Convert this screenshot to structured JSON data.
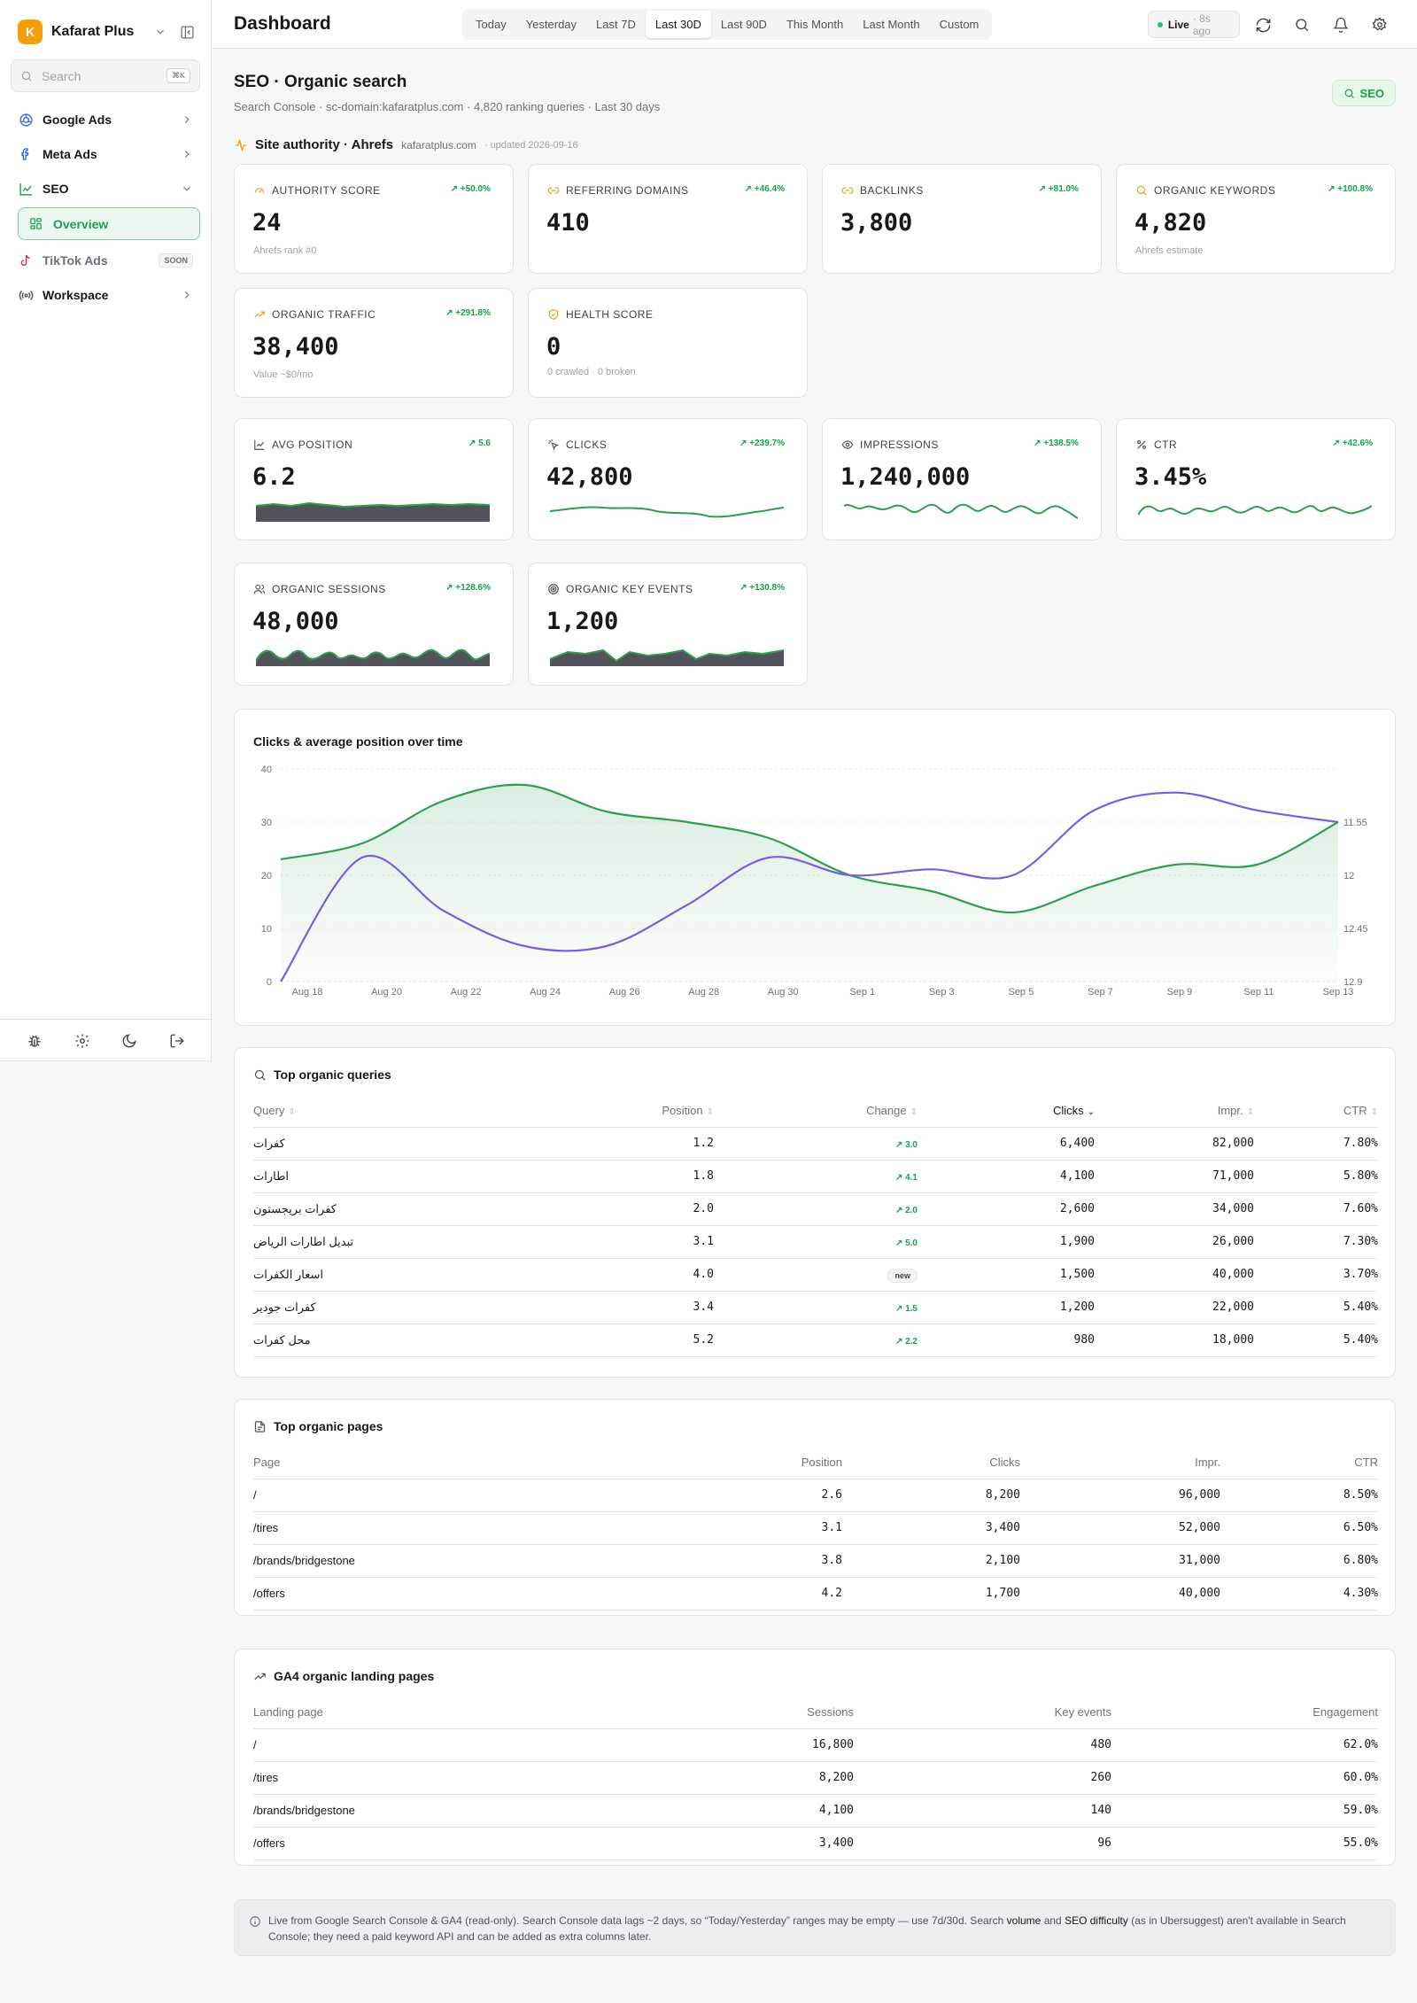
{
  "brand": {
    "initial": "K",
    "name": "Kafarat Plus"
  },
  "search": {
    "placeholder": "Search",
    "shortcut": "⌘K"
  },
  "sidebar": {
    "items": [
      {
        "label": "Google Ads"
      },
      {
        "label": "Meta Ads"
      },
      {
        "label": "SEO"
      },
      {
        "label": "TikTok Ads",
        "badge": "SOON"
      },
      {
        "label": "Workspace"
      }
    ],
    "sub_item": "Overview"
  },
  "header": {
    "title": "Dashboard",
    "ranges": [
      "Today",
      "Yesterday",
      "Last 7D",
      "Last 30D",
      "Last 90D",
      "This Month",
      "Last Month",
      "Custom"
    ],
    "active_range": "Last 30D",
    "live_label": "Live",
    "live_ago": "· 8s ago"
  },
  "section": {
    "title": "SEO · Organic search",
    "subtitle": "Search Console · sc-domain:kafaratplus.com · 4,820 ranking queries · Last 30 days",
    "badge": "SEO"
  },
  "authority": {
    "title": "Site authority · Ahrefs",
    "domain": "kafaratplus.com",
    "updated": "· updated 2026-09-16"
  },
  "authority_cards": [
    {
      "label": "AUTHORITY SCORE",
      "change": "↗ +50.0%",
      "value": "24",
      "sub": "Ahrefs rank #0"
    },
    {
      "label": "REFERRING DOMAINS",
      "change": "↗ +46.4%",
      "value": "410",
      "sub": ""
    },
    {
      "label": "BACKLINKS",
      "change": "↗ +81.0%",
      "value": "3,800",
      "sub": ""
    },
    {
      "label": "ORGANIC KEYWORDS",
      "change": "↗ +100.8%",
      "value": "4,820",
      "sub": "Ahrefs estimate"
    },
    {
      "label": "ORGANIC TRAFFIC",
      "change": "↗ +291.8%",
      "value": "38,400",
      "sub": "Value ~$0/mo"
    },
    {
      "label": "HEALTH SCORE",
      "change": "",
      "value": "0",
      "sub": "0 crawled · 0 broken"
    }
  ],
  "metric_cards": [
    {
      "label": "AVG POSITION",
      "change": "↗ 5.6",
      "value": "6.2"
    },
    {
      "label": "CLICKS",
      "change": "↗ +239.7%",
      "value": "42,800"
    },
    {
      "label": "IMPRESSIONS",
      "change": "↗ +138.5%",
      "value": "1,240,000"
    },
    {
      "label": "CTR",
      "change": "↗ +42.6%",
      "value": "3.45%"
    },
    {
      "label": "ORGANIC SESSIONS",
      "change": "↗ +128.6%",
      "value": "48,000"
    },
    {
      "label": "ORGANIC KEY EVENTS",
      "change": "↗ +130.8%",
      "value": "1,200"
    }
  ],
  "chart_data": {
    "type": "line",
    "title": "Clicks & average position over time",
    "x": [
      "Aug 18",
      "Aug 20",
      "Aug 22",
      "Aug 24",
      "Aug 26",
      "Aug 28",
      "Aug 30",
      "Sep 1",
      "Sep 3",
      "Sep 5",
      "Sep 7",
      "Sep 9",
      "Sep 11",
      "Sep 13"
    ],
    "y_left_ticks": [
      "0",
      "10",
      "20",
      "30",
      "40"
    ],
    "y_right_ticks": [
      "11.55",
      "12",
      "12.45",
      "12.9"
    ],
    "ylim_left": [
      0,
      40
    ],
    "ylim_right_inverted": [
      11.1,
      12.9
    ],
    "colors": {
      "clicks": "#2f9e4f",
      "position": "#7c5ce0"
    },
    "series": [
      {
        "axis": "left",
        "color": "#2f9e4f",
        "values": [
          23,
          26,
          34,
          37,
          32,
          30,
          27,
          20,
          17,
          13,
          18,
          22,
          22,
          30
        ]
      },
      {
        "axis": "right",
        "color": "#7c5ce0",
        "values": [
          12.9,
          11.85,
          12.3,
          12.6,
          12.6,
          12.25,
          11.85,
          12.0,
          11.95,
          12.0,
          11.45,
          11.3,
          11.45,
          11.55
        ]
      }
    ]
  },
  "queries": {
    "title": "Top organic queries",
    "columns": [
      "Query",
      "Position",
      "Change",
      "Clicks",
      "Impr.",
      "CTR"
    ],
    "rows": [
      {
        "query": "كفرات",
        "position": "1.2",
        "change": "↗ 3.0",
        "clicks": "6,400",
        "impr": "82,000",
        "ctr": "7.80%"
      },
      {
        "query": "اطارات",
        "position": "1.8",
        "change": "↗ 4.1",
        "clicks": "4,100",
        "impr": "71,000",
        "ctr": "5.80%"
      },
      {
        "query": "كفرات بريجستون",
        "position": "2.0",
        "change": "↗ 2.0",
        "clicks": "2,600",
        "impr": "34,000",
        "ctr": "7.60%"
      },
      {
        "query": "تبديل اطارات الرياض",
        "position": "3.1",
        "change": "↗ 5.0",
        "clicks": "1,900",
        "impr": "26,000",
        "ctr": "7.30%"
      },
      {
        "query": "اسعار الكفرات",
        "position": "4.0",
        "change": "new",
        "clicks": "1,500",
        "impr": "40,000",
        "ctr": "3.70%"
      },
      {
        "query": "كفرات جودير",
        "position": "3.4",
        "change": "↗ 1.5",
        "clicks": "1,200",
        "impr": "22,000",
        "ctr": "5.40%"
      },
      {
        "query": "محل كفرات",
        "position": "5.2",
        "change": "↗ 2.2",
        "clicks": "980",
        "impr": "18,000",
        "ctr": "5.40%"
      }
    ]
  },
  "pages": {
    "title": "Top organic pages",
    "columns": [
      "Page",
      "Position",
      "Clicks",
      "Impr.",
      "CTR"
    ],
    "rows": [
      {
        "page": "/",
        "position": "2.6",
        "clicks": "8,200",
        "impr": "96,000",
        "ctr": "8.50%"
      },
      {
        "page": "/tires",
        "position": "3.1",
        "clicks": "3,400",
        "impr": "52,000",
        "ctr": "6.50%"
      },
      {
        "page": "/brands/bridgestone",
        "position": "3.8",
        "clicks": "2,100",
        "impr": "31,000",
        "ctr": "6.80%"
      },
      {
        "page": "/offers",
        "position": "4.2",
        "clicks": "1,700",
        "impr": "40,000",
        "ctr": "4.30%"
      }
    ]
  },
  "landing": {
    "title": "GA4 organic landing pages",
    "columns": [
      "Landing page",
      "Sessions",
      "Key events",
      "Engagement"
    ],
    "rows": [
      {
        "page": "/",
        "sessions": "16,800",
        "events": "480",
        "eng": "62.0%"
      },
      {
        "page": "/tires",
        "sessions": "8,200",
        "events": "260",
        "eng": "60.0%"
      },
      {
        "page": "/brands/bridgestone",
        "sessions": "4,100",
        "events": "140",
        "eng": "59.0%"
      },
      {
        "page": "/offers",
        "sessions": "3,400",
        "events": "96",
        "eng": "55.0%"
      }
    ]
  },
  "note": {
    "part1": "Live from Google Search Console & GA4 (read-only). Search Console data lags ~2 days, so “Today/Yesterday” ranges may be empty — use 7d/30d. Search ",
    "volume": "volume",
    "and": " and ",
    "difficulty": "SEO difficulty",
    "part2": " (as in Ubersuggest) aren't available in Search Console; they need a paid keyword API and can be added as extra columns later."
  }
}
